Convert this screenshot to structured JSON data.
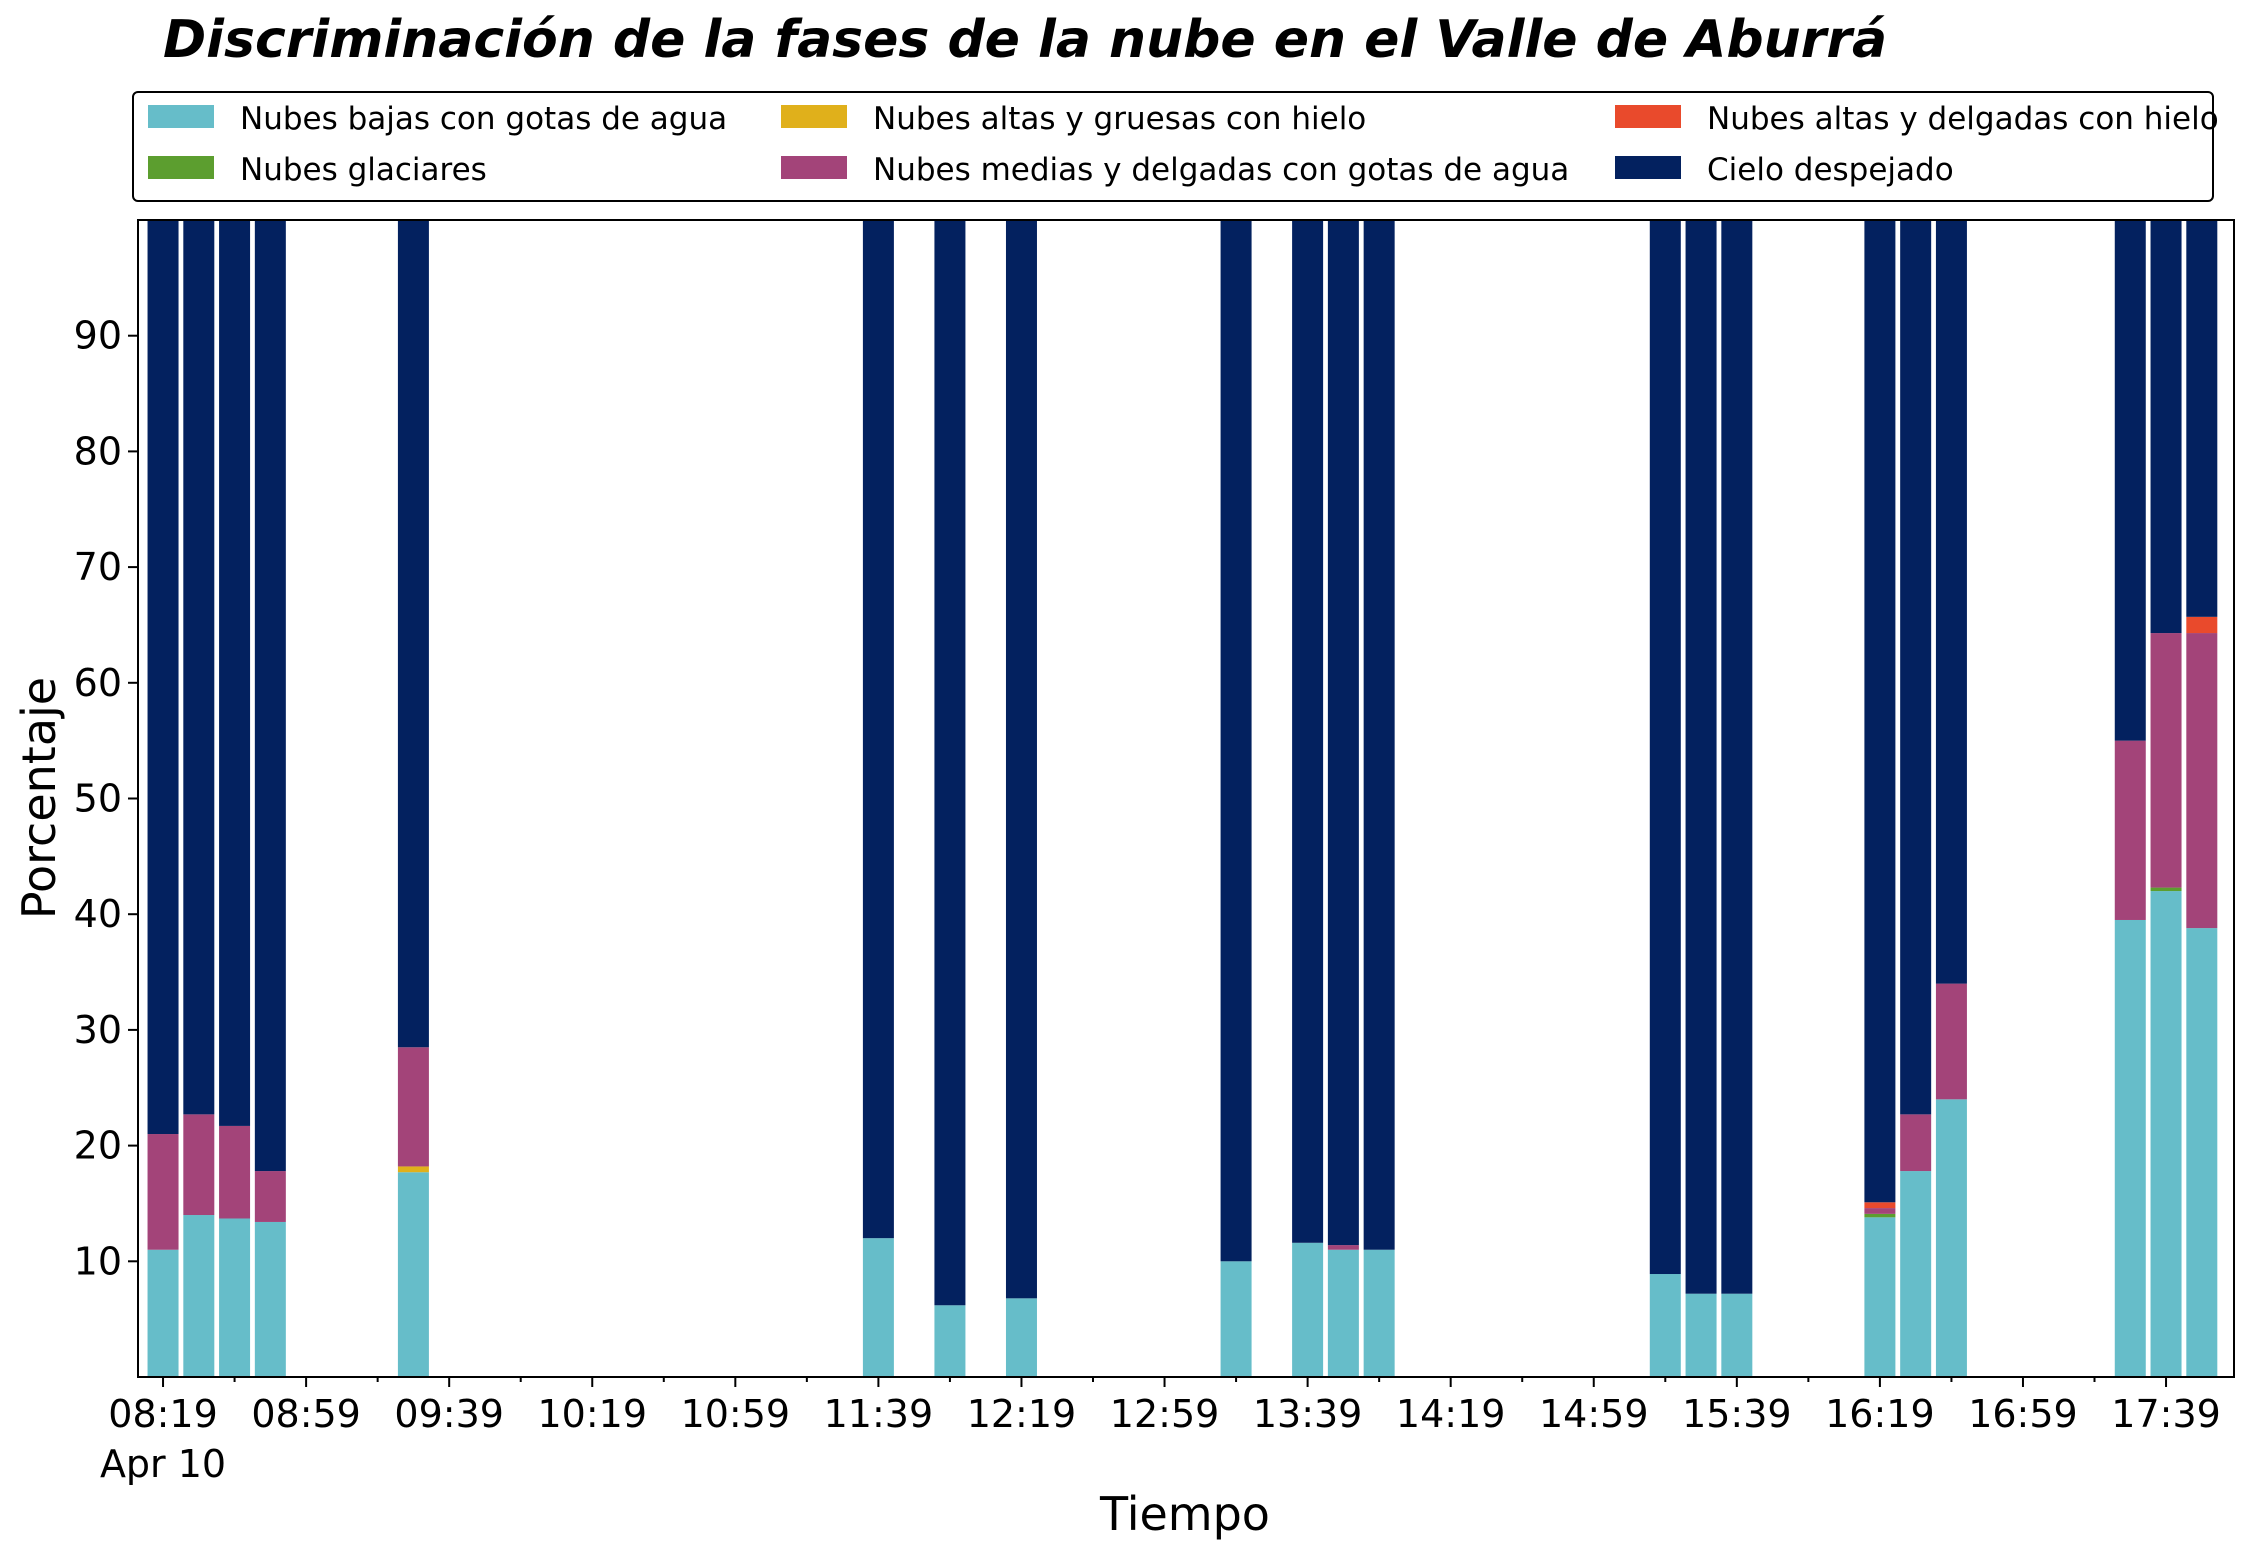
{
  "chart_data": {
    "type": "bar",
    "stacked": true,
    "title": "Discriminación de la fases de la nube en el Valle de Aburrá",
    "xlabel": "Tiempo",
    "ylabel": "Porcentaje",
    "ylim": [
      0,
      100
    ],
    "yticks": [
      10,
      20,
      30,
      40,
      50,
      60,
      70,
      80,
      90
    ],
    "xlim_minutes": [
      "08:12",
      "17:58"
    ],
    "xticks": [
      "08:19",
      "08:59",
      "09:39",
      "10:19",
      "10:59",
      "11:39",
      "12:19",
      "12:59",
      "13:39",
      "14:19",
      "14:59",
      "15:39",
      "16:19",
      "16:59",
      "17:39"
    ],
    "xtick_sublabel": "Apr 10",
    "grid": false,
    "legend_position": "top",
    "categories": [
      "08:19",
      "08:29",
      "08:39",
      "08:49",
      "09:29",
      "11:39",
      "11:59",
      "12:19",
      "13:19",
      "13:39",
      "13:49",
      "13:59",
      "15:19",
      "15:29",
      "15:39",
      "16:19",
      "16:29",
      "16:39",
      "17:29",
      "17:39",
      "17:49"
    ],
    "series": [
      {
        "name": "Nubes bajas con gotas de agua",
        "color": "#66bdc9",
        "values": [
          11,
          14,
          13.7,
          13.4,
          17.7,
          12,
          6.2,
          6.8,
          10,
          11.6,
          11,
          11,
          8.9,
          7.2,
          7.2,
          13.8,
          17.8,
          24,
          39.5,
          42,
          38.8
        ]
      },
      {
        "name": "Nubes glaciares",
        "color": "#5c9e2f",
        "values": [
          0,
          0,
          0,
          0,
          0,
          0,
          0,
          0,
          0,
          0,
          0,
          0,
          0,
          0,
          0,
          0.3,
          0,
          0,
          0,
          0.3,
          0
        ]
      },
      {
        "name": "Nubes altas y gruesas con hielo",
        "color": "#e0b01b",
        "values": [
          0,
          0,
          0,
          0,
          0.5,
          0,
          0,
          0,
          0,
          0,
          0,
          0,
          0,
          0,
          0,
          0,
          0,
          0,
          0,
          0,
          0
        ]
      },
      {
        "name": "Nubes medias y delgadas con gotas de agua",
        "color": "#a34479",
        "values": [
          10,
          8.7,
          8,
          4.4,
          10.3,
          0,
          0,
          0,
          0,
          0,
          0.4,
          0,
          0,
          0,
          0,
          0.5,
          4.9,
          10,
          15.5,
          22,
          25.5
        ]
      },
      {
        "name": "Nubes altas y delgadas con hielo",
        "color": "#e94a2c",
        "values": [
          0,
          0,
          0,
          0,
          0,
          0,
          0,
          0,
          0,
          0,
          0,
          0,
          0,
          0,
          0,
          0.5,
          0,
          0,
          0,
          0,
          1.4
        ]
      },
      {
        "name": "Cielo despejado",
        "color": "#03215f",
        "values": [
          79,
          77.3,
          78.3,
          82.2,
          71.5,
          88,
          93.8,
          93.2,
          90,
          88.4,
          88.6,
          89,
          91.1,
          92.8,
          92.8,
          84.9,
          77.3,
          66,
          45,
          35.7,
          34.3
        ]
      }
    ]
  }
}
